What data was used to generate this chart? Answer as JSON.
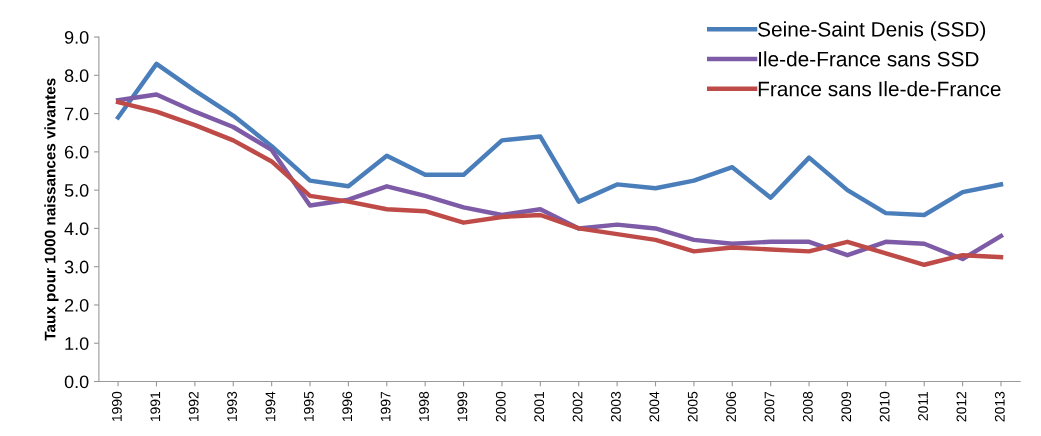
{
  "chart_data": {
    "type": "line",
    "ylabel": "Taux pour 1000 naissances vivantes",
    "categories": [
      "1990",
      "1991",
      "1992",
      "1993",
      "1994",
      "1995",
      "1996",
      "1997",
      "1998",
      "1999",
      "2000",
      "2001",
      "2002",
      "2003",
      "2004",
      "2005",
      "2006",
      "2007",
      "2008",
      "2009",
      "2010",
      "2011",
      "2012",
      "2013"
    ],
    "series": [
      {
        "name": "Seine-Saint Denis (SSD)",
        "color": "#4a7ebb",
        "values": [
          6.9,
          8.3,
          7.6,
          6.95,
          6.15,
          5.25,
          5.1,
          5.9,
          5.4,
          5.4,
          6.3,
          6.4,
          4.7,
          5.15,
          5.05,
          5.25,
          5.6,
          4.8,
          5.85,
          5.0,
          4.4,
          4.35,
          4.95,
          5.15
        ]
      },
      {
        "name": "Ile-de-France sans SSD",
        "color": "#7d5ba6",
        "values": [
          7.35,
          7.5,
          7.05,
          6.65,
          6.05,
          4.6,
          4.75,
          5.1,
          4.85,
          4.55,
          4.35,
          4.5,
          4.0,
          4.1,
          4.0,
          3.7,
          3.6,
          3.65,
          3.65,
          3.3,
          3.65,
          3.6,
          3.2,
          3.8
        ]
      },
      {
        "name": "France sans Ile-de-France",
        "color": "#be4b48",
        "values": [
          7.3,
          7.05,
          6.7,
          6.3,
          5.75,
          4.85,
          4.7,
          4.5,
          4.45,
          4.15,
          4.3,
          4.35,
          4.0,
          3.85,
          3.7,
          3.4,
          3.5,
          3.45,
          3.4,
          3.65,
          3.35,
          3.05,
          3.3,
          3.25
        ]
      }
    ],
    "ylim": [
      0,
      9
    ],
    "yticks": [
      {
        "value": 0,
        "label": "0.0"
      },
      {
        "value": 1,
        "label": "1.0"
      },
      {
        "value": 2,
        "label": "2.0"
      },
      {
        "value": 3,
        "label": "3.0"
      },
      {
        "value": 4,
        "label": "4.0"
      },
      {
        "value": 5,
        "label": "5.0"
      },
      {
        "value": 6,
        "label": "6.0"
      },
      {
        "value": 7,
        "label": "7.0"
      },
      {
        "value": 8,
        "label": "8.0"
      },
      {
        "value": 9,
        "label": "9.0"
      }
    ],
    "legend": "top right",
    "marker": "none",
    "line_style": "solid"
  }
}
